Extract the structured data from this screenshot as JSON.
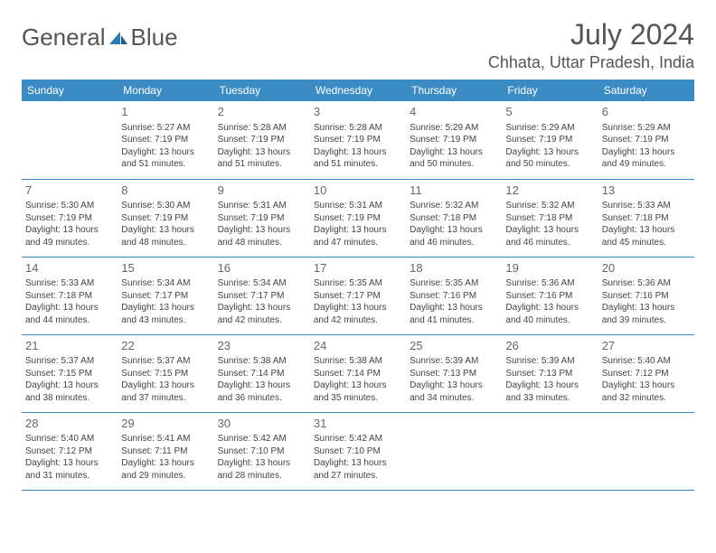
{
  "logo": {
    "text1": "General",
    "text2": "Blue"
  },
  "title": "July 2024",
  "location": "Chhata, Uttar Pradesh, India",
  "colors": {
    "header_bg": "#3b8bc4",
    "header_text": "#ffffff",
    "border": "#3b8bc4",
    "body_text": "#444444",
    "daynum": "#666666",
    "title_text": "#555555",
    "logo_gray": "#555555",
    "logo_blue": "#2a7ab8"
  },
  "day_headers": [
    "Sunday",
    "Monday",
    "Tuesday",
    "Wednesday",
    "Thursday",
    "Friday",
    "Saturday"
  ],
  "weeks": [
    [
      {
        "n": "",
        "sr": "",
        "ss": "",
        "dl": ""
      },
      {
        "n": "1",
        "sr": "Sunrise: 5:27 AM",
        "ss": "Sunset: 7:19 PM",
        "dl": "Daylight: 13 hours and 51 minutes."
      },
      {
        "n": "2",
        "sr": "Sunrise: 5:28 AM",
        "ss": "Sunset: 7:19 PM",
        "dl": "Daylight: 13 hours and 51 minutes."
      },
      {
        "n": "3",
        "sr": "Sunrise: 5:28 AM",
        "ss": "Sunset: 7:19 PM",
        "dl": "Daylight: 13 hours and 51 minutes."
      },
      {
        "n": "4",
        "sr": "Sunrise: 5:29 AM",
        "ss": "Sunset: 7:19 PM",
        "dl": "Daylight: 13 hours and 50 minutes."
      },
      {
        "n": "5",
        "sr": "Sunrise: 5:29 AM",
        "ss": "Sunset: 7:19 PM",
        "dl": "Daylight: 13 hours and 50 minutes."
      },
      {
        "n": "6",
        "sr": "Sunrise: 5:29 AM",
        "ss": "Sunset: 7:19 PM",
        "dl": "Daylight: 13 hours and 49 minutes."
      }
    ],
    [
      {
        "n": "7",
        "sr": "Sunrise: 5:30 AM",
        "ss": "Sunset: 7:19 PM",
        "dl": "Daylight: 13 hours and 49 minutes."
      },
      {
        "n": "8",
        "sr": "Sunrise: 5:30 AM",
        "ss": "Sunset: 7:19 PM",
        "dl": "Daylight: 13 hours and 48 minutes."
      },
      {
        "n": "9",
        "sr": "Sunrise: 5:31 AM",
        "ss": "Sunset: 7:19 PM",
        "dl": "Daylight: 13 hours and 48 minutes."
      },
      {
        "n": "10",
        "sr": "Sunrise: 5:31 AM",
        "ss": "Sunset: 7:19 PM",
        "dl": "Daylight: 13 hours and 47 minutes."
      },
      {
        "n": "11",
        "sr": "Sunrise: 5:32 AM",
        "ss": "Sunset: 7:18 PM",
        "dl": "Daylight: 13 hours and 46 minutes."
      },
      {
        "n": "12",
        "sr": "Sunrise: 5:32 AM",
        "ss": "Sunset: 7:18 PM",
        "dl": "Daylight: 13 hours and 46 minutes."
      },
      {
        "n": "13",
        "sr": "Sunrise: 5:33 AM",
        "ss": "Sunset: 7:18 PM",
        "dl": "Daylight: 13 hours and 45 minutes."
      }
    ],
    [
      {
        "n": "14",
        "sr": "Sunrise: 5:33 AM",
        "ss": "Sunset: 7:18 PM",
        "dl": "Daylight: 13 hours and 44 minutes."
      },
      {
        "n": "15",
        "sr": "Sunrise: 5:34 AM",
        "ss": "Sunset: 7:17 PM",
        "dl": "Daylight: 13 hours and 43 minutes."
      },
      {
        "n": "16",
        "sr": "Sunrise: 5:34 AM",
        "ss": "Sunset: 7:17 PM",
        "dl": "Daylight: 13 hours and 42 minutes."
      },
      {
        "n": "17",
        "sr": "Sunrise: 5:35 AM",
        "ss": "Sunset: 7:17 PM",
        "dl": "Daylight: 13 hours and 42 minutes."
      },
      {
        "n": "18",
        "sr": "Sunrise: 5:35 AM",
        "ss": "Sunset: 7:16 PM",
        "dl": "Daylight: 13 hours and 41 minutes."
      },
      {
        "n": "19",
        "sr": "Sunrise: 5:36 AM",
        "ss": "Sunset: 7:16 PM",
        "dl": "Daylight: 13 hours and 40 minutes."
      },
      {
        "n": "20",
        "sr": "Sunrise: 5:36 AM",
        "ss": "Sunset: 7:16 PM",
        "dl": "Daylight: 13 hours and 39 minutes."
      }
    ],
    [
      {
        "n": "21",
        "sr": "Sunrise: 5:37 AM",
        "ss": "Sunset: 7:15 PM",
        "dl": "Daylight: 13 hours and 38 minutes."
      },
      {
        "n": "22",
        "sr": "Sunrise: 5:37 AM",
        "ss": "Sunset: 7:15 PM",
        "dl": "Daylight: 13 hours and 37 minutes."
      },
      {
        "n": "23",
        "sr": "Sunrise: 5:38 AM",
        "ss": "Sunset: 7:14 PM",
        "dl": "Daylight: 13 hours and 36 minutes."
      },
      {
        "n": "24",
        "sr": "Sunrise: 5:38 AM",
        "ss": "Sunset: 7:14 PM",
        "dl": "Daylight: 13 hours and 35 minutes."
      },
      {
        "n": "25",
        "sr": "Sunrise: 5:39 AM",
        "ss": "Sunset: 7:13 PM",
        "dl": "Daylight: 13 hours and 34 minutes."
      },
      {
        "n": "26",
        "sr": "Sunrise: 5:39 AM",
        "ss": "Sunset: 7:13 PM",
        "dl": "Daylight: 13 hours and 33 minutes."
      },
      {
        "n": "27",
        "sr": "Sunrise: 5:40 AM",
        "ss": "Sunset: 7:12 PM",
        "dl": "Daylight: 13 hours and 32 minutes."
      }
    ],
    [
      {
        "n": "28",
        "sr": "Sunrise: 5:40 AM",
        "ss": "Sunset: 7:12 PM",
        "dl": "Daylight: 13 hours and 31 minutes."
      },
      {
        "n": "29",
        "sr": "Sunrise: 5:41 AM",
        "ss": "Sunset: 7:11 PM",
        "dl": "Daylight: 13 hours and 29 minutes."
      },
      {
        "n": "30",
        "sr": "Sunrise: 5:42 AM",
        "ss": "Sunset: 7:10 PM",
        "dl": "Daylight: 13 hours and 28 minutes."
      },
      {
        "n": "31",
        "sr": "Sunrise: 5:42 AM",
        "ss": "Sunset: 7:10 PM",
        "dl": "Daylight: 13 hours and 27 minutes."
      },
      {
        "n": "",
        "sr": "",
        "ss": "",
        "dl": ""
      },
      {
        "n": "",
        "sr": "",
        "ss": "",
        "dl": ""
      },
      {
        "n": "",
        "sr": "",
        "ss": "",
        "dl": ""
      }
    ]
  ]
}
